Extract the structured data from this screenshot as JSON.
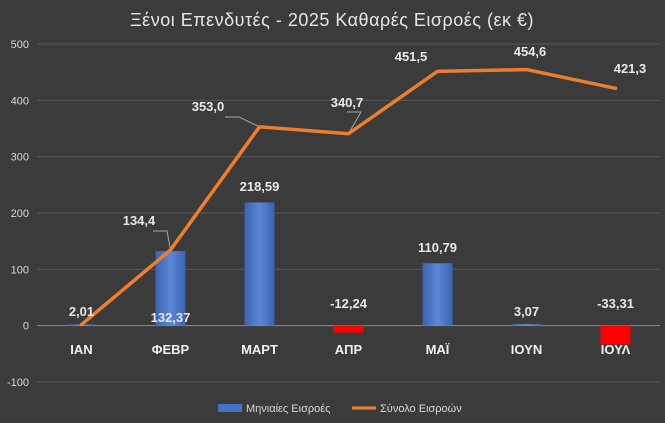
{
  "chart_data": {
    "type": "bar+line",
    "title": "Ξένοι Επενδυτές - 2025 Καθαρές Εισροές (εκ €)",
    "categories": [
      "ΙΑΝ",
      "ΦΕΒΡ",
      "ΜΑΡΤ",
      "ΑΠΡ",
      "ΜΑΪ",
      "ΙΟΥΝ",
      "ΙΟΥΛ"
    ],
    "ylim": [
      -100,
      500
    ],
    "yticks": [
      "-100",
      "0",
      "100",
      "200",
      "300",
      "400",
      "500"
    ],
    "grid": true,
    "legend_position": "bottom",
    "series": [
      {
        "name": "Μηνιαίες Εισροές",
        "type": "bar",
        "values": [
          2.01,
          132.37,
          218.59,
          -12.24,
          110.79,
          3.07,
          -33.31
        ],
        "labels": [
          "2,01",
          "132,37",
          "218,59",
          "-12,24",
          "110,79",
          "3,07",
          "-33,31"
        ],
        "color_positive": "#4472c4",
        "color_negative": "#ff0000"
      },
      {
        "name": "Σύνολο Εισροών",
        "type": "line",
        "values": [
          2.01,
          134.4,
          353.0,
          340.7,
          451.5,
          454.6,
          421.3
        ],
        "labels": [
          "",
          "134,4",
          "353,0",
          "340,7",
          "451,5",
          "454,6",
          "421,3"
        ],
        "color": "#ed7d31"
      }
    ]
  }
}
